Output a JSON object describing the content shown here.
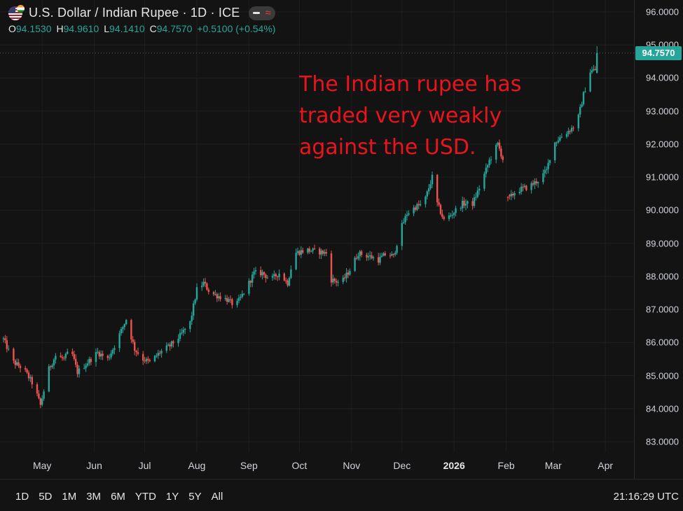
{
  "header": {
    "title": "U.S. Dollar / Indian Rupee · 1D · ICE",
    "ohlc": {
      "o_label": "O",
      "o": "94.1530",
      "h_label": "H",
      "h": "94.9610",
      "l_label": "L",
      "l": "94.1410",
      "c_label": "C",
      "c": "94.7570",
      "change": "+0.5100 (+0.54%)"
    }
  },
  "annotation": [
    "The Indian rupee has",
    "traded very weakly",
    "against the USD."
  ],
  "colors": {
    "up": "#26a69a",
    "down": "#ef5350",
    "annotation": "#e8141e",
    "background": "#131313"
  },
  "icons": {
    "settings": "gear-icon",
    "compare": "minus-icon",
    "indicator": "wave-icon"
  },
  "range_buttons": [
    "1D",
    "5D",
    "1M",
    "3M",
    "6M",
    "YTD",
    "1Y",
    "5Y",
    "All"
  ],
  "clock": "21:16:29 UTC",
  "chart_data": {
    "type": "candlestick",
    "ylim": [
      82.7,
      96.2
    ],
    "y_ticks": [
      "96.0000",
      "95.0000",
      "94.0000",
      "93.0000",
      "92.0000",
      "91.0000",
      "90.0000",
      "89.0000",
      "88.0000",
      "87.0000",
      "86.0000",
      "85.0000",
      "84.0000",
      "83.0000"
    ],
    "last_price": "94.7570",
    "x_ticks": [
      {
        "label": "May",
        "day": 23
      },
      {
        "label": "Jun",
        "day": 54
      },
      {
        "label": "Jul",
        "day": 84
      },
      {
        "label": "Aug",
        "day": 115
      },
      {
        "label": "Sep",
        "day": 146
      },
      {
        "label": "Oct",
        "day": 176
      },
      {
        "label": "Nov",
        "day": 207
      },
      {
        "label": "Dec",
        "day": 237
      },
      {
        "label": "2026",
        "day": 268,
        "bold": true
      },
      {
        "label": "Feb",
        "day": 299
      },
      {
        "label": "Mar",
        "day": 327
      },
      {
        "label": "Apr",
        "day": 358
      }
    ],
    "date_range": [
      "2025-04-08",
      "2026-03-27"
    ],
    "anchors": [
      [
        "2025-04-08",
        86.1
      ],
      [
        "2025-04-14",
        85.4
      ],
      [
        "2025-04-20",
        85.2
      ],
      [
        "2025-04-26",
        84.7
      ],
      [
        "2025-04-30",
        84.1
      ],
      [
        "2025-05-05",
        85.2
      ],
      [
        "2025-05-09",
        85.6
      ],
      [
        "2025-05-14",
        85.5
      ],
      [
        "2025-05-18",
        85.8
      ],
      [
        "2025-05-22",
        85.1
      ],
      [
        "2025-05-28",
        85.4
      ],
      [
        "2025-06-03",
        85.7
      ],
      [
        "2025-06-09",
        85.5
      ],
      [
        "2025-06-13",
        85.9
      ],
      [
        "2025-06-20",
        86.7
      ],
      [
        "2025-06-25",
        85.8
      ],
      [
        "2025-06-30",
        85.5
      ],
      [
        "2025-07-04",
        85.4
      ],
      [
        "2025-07-10",
        85.7
      ],
      [
        "2025-07-16",
        85.9
      ],
      [
        "2025-07-22",
        86.2
      ],
      [
        "2025-07-28",
        86.6
      ],
      [
        "2025-08-01",
        87.6
      ],
      [
        "2025-08-05",
        87.8
      ],
      [
        "2025-08-09",
        87.5
      ],
      [
        "2025-08-14",
        87.4
      ],
      [
        "2025-08-19",
        87.3
      ],
      [
        "2025-08-24",
        87.1
      ],
      [
        "2025-08-30",
        87.6
      ],
      [
        "2025-09-04",
        88.1
      ],
      [
        "2025-09-09",
        88.1
      ],
      [
        "2025-09-14",
        87.9
      ],
      [
        "2025-09-19",
        88.1
      ],
      [
        "2025-09-24",
        87.8
      ],
      [
        "2025-09-28",
        88.7
      ],
      [
        "2025-10-05",
        88.8
      ],
      [
        "2025-10-12",
        88.75
      ],
      [
        "2025-10-17",
        88.7
      ],
      [
        "2025-10-20",
        87.9
      ],
      [
        "2025-10-26",
        87.8
      ],
      [
        "2025-10-31",
        88.2
      ],
      [
        "2025-11-05",
        88.7
      ],
      [
        "2025-11-12",
        88.6
      ],
      [
        "2025-11-17",
        88.5
      ],
      [
        "2025-11-22",
        88.7
      ],
      [
        "2025-11-26",
        88.6
      ],
      [
        "2025-11-30",
        89.4
      ],
      [
        "2025-12-04",
        89.9
      ],
      [
        "2025-12-09",
        90.1
      ],
      [
        "2025-12-14",
        90.2
      ],
      [
        "2025-12-19",
        91.0
      ],
      [
        "2025-12-22",
        90.2
      ],
      [
        "2025-12-26",
        89.7
      ],
      [
        "2025-12-31",
        89.9
      ],
      [
        "2026-01-06",
        90.2
      ],
      [
        "2026-01-12",
        90.2
      ],
      [
        "2026-01-17",
        90.8
      ],
      [
        "2026-01-22",
        91.5
      ],
      [
        "2026-01-27",
        92.0
      ],
      [
        "2026-01-31",
        91.4
      ],
      [
        "2026-02-02",
        90.3
      ],
      [
        "2026-02-07",
        90.6
      ],
      [
        "2026-02-14",
        90.7
      ],
      [
        "2026-02-20",
        90.9
      ],
      [
        "2026-02-25",
        91.2
      ],
      [
        "2026-03-01",
        92.0
      ],
      [
        "2026-03-05",
        92.2
      ],
      [
        "2026-03-10",
        92.4
      ],
      [
        "2026-03-15",
        92.6
      ],
      [
        "2026-03-19",
        93.5
      ],
      [
        "2026-03-23",
        94.2
      ],
      [
        "2026-03-26",
        94.25
      ],
      [
        "2026-03-27",
        94.757
      ]
    ]
  }
}
